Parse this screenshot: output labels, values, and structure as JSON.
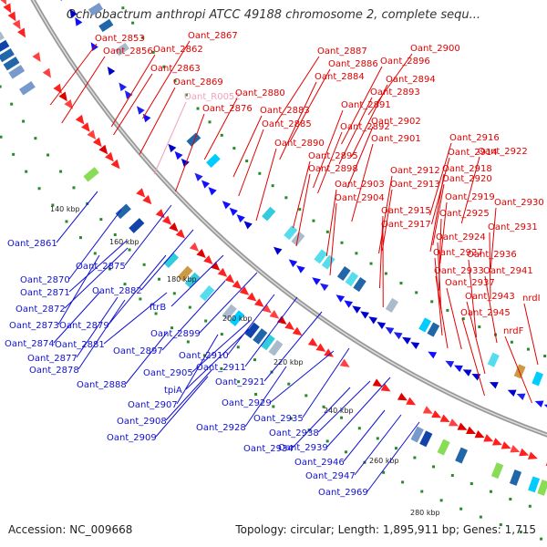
{
  "title": "Ochrobactrum anthropi ATCC 49188 chromosome 2, complete sequ...",
  "footer": {
    "accession": "Accession: NC_009668",
    "topology": "Topology: circular; Length: 1,895,911 bp; Genes: 1,715"
  },
  "colors": {
    "forward_label": "#e00000",
    "reverse_label": "#1010d0",
    "rna_label": "#f0a0c0",
    "backbone": "#999999",
    "dots": "#2a8a2a"
  },
  "scale_ticks": [
    "140 kbp",
    "160 kbp",
    "180 kbp",
    "200 kbp",
    "220 kbp",
    "240 kbp",
    "260 kbp",
    "280 kbp"
  ],
  "forward_genes": [
    "Oant_2853",
    "Oant_2856",
    "Oant_2862",
    "Oant_2867",
    "Oant_2863",
    "Oant_2869",
    "Oant_R0052",
    "Oant_2876",
    "Oant_2880",
    "Oant_2887",
    "Oant_2886",
    "Oant_2884",
    "Oant_2883",
    "Oant_2885",
    "Oant_2890",
    "Oant_2891",
    "Oant_2892",
    "Oant_2893",
    "Oant_2894",
    "Oant_2896",
    "Oant_2900",
    "Oant_2895",
    "Oant_2898",
    "Oant_2901",
    "Oant_2902",
    "Oant_2903",
    "Oant_2904",
    "Oant_2912",
    "Oant_2913",
    "Oant_2914",
    "Oant_2916",
    "Oant_2918",
    "Oant_2920",
    "Oant_2922",
    "Oant_2915",
    "Oant_2917",
    "Oant_2919",
    "Oant_2924",
    "Oant_2925",
    "Oant_2927",
    "Oant_2930",
    "Oant_2931",
    "Oant_2933",
    "Oant_2936",
    "Oant_2937",
    "Oant_2941",
    "Oant_2943",
    "Oant_2945",
    "nrdI",
    "nrdF"
  ],
  "reverse_genes": [
    "Oant_2861",
    "Oant_2875",
    "Oant_2870",
    "Oant_2871",
    "Oant_2872",
    "Oant_2873",
    "Oant_2874",
    "Oant_2882",
    "Oant_2879",
    "Oant_2881",
    "Oant_2877",
    "Oant_2878",
    "ftrB",
    "Oant_2899",
    "Oant_2897",
    "Oant_2888",
    "Oant_2910",
    "Oant_2911",
    "Oant_2905",
    "tpiA",
    "Oant_2907",
    "Oant_2908",
    "Oant_2909",
    "Oant_2921",
    "Oant_2929",
    "Oant_2928",
    "Oant_2935",
    "Oant_2938",
    "Oant_2934",
    "Oant_2939",
    "Oant_2946",
    "Oant_2947",
    "Oant_2969"
  ]
}
